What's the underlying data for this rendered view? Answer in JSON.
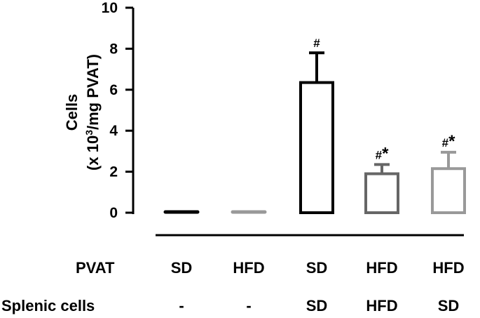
{
  "chart_data": {
    "type": "bar",
    "title": "",
    "ylabel_line1": "Cells",
    "ylabel_line2_prefix": "(x 10",
    "ylabel_line2_sup": "3",
    "ylabel_line2_suffix": "/mg PVAT)",
    "ylim": [
      0,
      10
    ],
    "yticks": [
      0,
      2,
      4,
      6,
      8,
      10
    ],
    "grid": false,
    "row_labels": [
      "PVAT",
      "Splenic cells"
    ],
    "categories_pvat": [
      "SD",
      "HFD",
      "SD",
      "HFD",
      "HFD"
    ],
    "categories_splenic": [
      "-",
      "-",
      "SD",
      "HFD",
      "SD"
    ],
    "values": [
      0.05,
      0.05,
      6.35,
      1.9,
      2.15
    ],
    "errors": [
      0.03,
      0.03,
      1.45,
      0.45,
      0.8
    ],
    "annotations": [
      "",
      "",
      "#",
      "#*",
      "#*"
    ],
    "colors": [
      "#000000",
      "#999999",
      "#000000",
      "#666666",
      "#999999"
    ]
  }
}
